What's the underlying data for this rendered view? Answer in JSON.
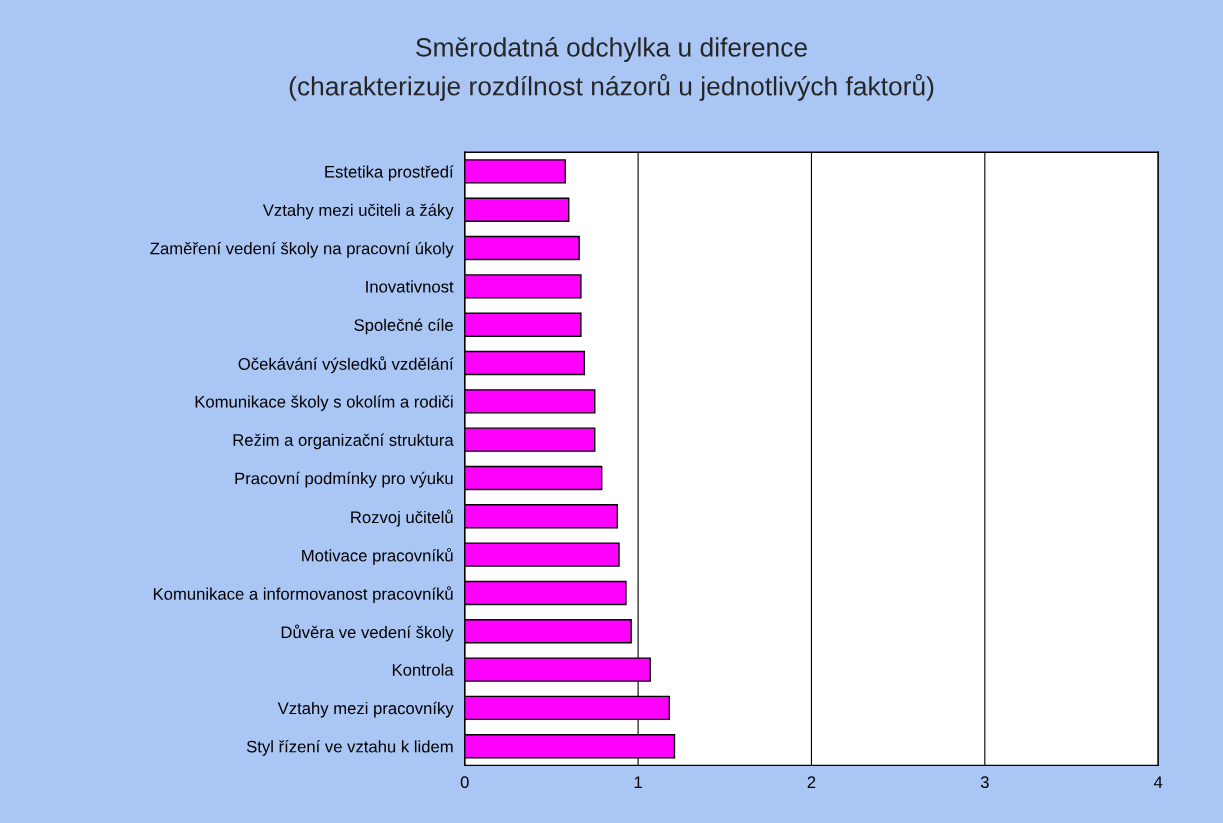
{
  "chart_data": {
    "type": "bar",
    "orientation": "horizontal",
    "title": "Směrodatná odchylka u diference",
    "subtitle": "(charakterizuje rozdílnost názorů u jednotlivých faktorů)",
    "categories": [
      "Estetika prostředí",
      "Vztahy mezi učiteli a žáky",
      "Zaměření vedení školy na pracovní úkoly",
      "Inovativnost",
      "Společné cíle",
      "Očekávání výsledků vzdělání",
      "Komunikace školy s okolím a rodiči",
      "Režim a organizační struktura",
      "Pracovní podmínky pro výuku",
      "Rozvoj učitelů",
      "Motivace pracovníků",
      "Komunikace a informovanost pracovníků",
      "Důvěra ve vedení školy",
      "Kontrola",
      "Vztahy mezi pracovníky",
      "Styl řízení ve vztahu k lidem"
    ],
    "values": [
      0.58,
      0.6,
      0.66,
      0.67,
      0.67,
      0.69,
      0.75,
      0.75,
      0.79,
      0.88,
      0.89,
      0.93,
      0.96,
      1.07,
      1.18,
      1.21
    ],
    "color": "#ff00ff",
    "xlim": [
      0,
      4
    ],
    "xticks": [
      0,
      1,
      2,
      3,
      4
    ],
    "grid": "x",
    "legend": false
  }
}
